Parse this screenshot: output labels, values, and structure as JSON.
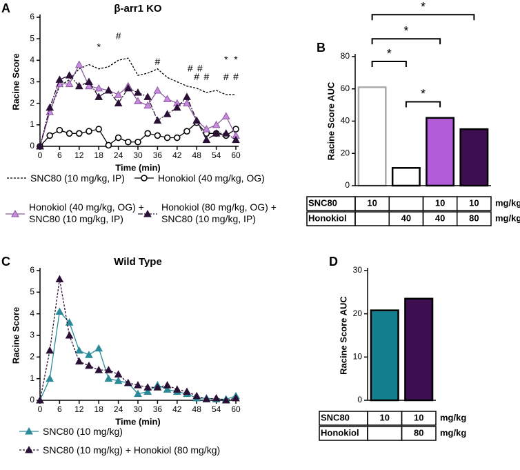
{
  "chart_data": [
    {
      "type": "line",
      "panel": "A",
      "title": "β-arr1 KO",
      "xlabel": "Time (min)",
      "ylabel": "Racine Score",
      "x": [
        0,
        3,
        6,
        9,
        12,
        15,
        18,
        21,
        24,
        27,
        30,
        33,
        36,
        39,
        42,
        45,
        48,
        51,
        54,
        57,
        60
      ],
      "xlim": [
        0,
        60
      ],
      "xticks": [
        0,
        6,
        12,
        18,
        24,
        30,
        36,
        42,
        48,
        54,
        60
      ],
      "ylim": [
        0,
        6
      ],
      "yticks": [
        0,
        1,
        2,
        3,
        4,
        5,
        6
      ],
      "series": [
        {
          "name": "SNC80 (10 mg/kg, IP)",
          "color": "#000000",
          "marker": "none",
          "dash": "dashed",
          "values": [
            0,
            1.6,
            2.8,
            3.1,
            3.6,
            3.8,
            3.6,
            3.7,
            4.0,
            4.1,
            3.3,
            3.4,
            3.6,
            3.2,
            3.0,
            2.8,
            2.7,
            2.5,
            2.6,
            2.4,
            2.4
          ]
        },
        {
          "name": "Honokiol (40 mg/kg, OG)",
          "color": "#000000",
          "marker": "circle",
          "marker_fill": "#ffffff",
          "dash": "solid",
          "values": [
            0,
            0.5,
            0.75,
            0.6,
            0.6,
            0.7,
            0.8,
            0.05,
            0.4,
            0.2,
            0.2,
            0.6,
            0.5,
            0.4,
            0.4,
            0.7,
            1.1,
            0.6,
            0.6,
            0.5,
            0.8
          ]
        },
        {
          "name": "Honokiol (40 mg/kg, OG) + SNC80 (10 mg/kg, IP)",
          "color": "#8a5a9e",
          "marker": "triangle",
          "marker_fill": "#c98be0",
          "dash": "solid",
          "values": [
            0,
            1.6,
            2.9,
            2.9,
            3.8,
            2.8,
            2.7,
            2.6,
            2.4,
            2.8,
            2.1,
            1.9,
            2.6,
            2.2,
            2.0,
            2.0,
            1.2,
            0.8,
            1.0,
            1.4,
            0.5
          ]
        },
        {
          "name": "Honokiol (80 mg/kg, OG) + SNC80 (10 mg/kg, IP)",
          "color": "#2a1035",
          "marker": "triangle",
          "marker_fill": "#2a1035",
          "dash": "dashdot",
          "values": [
            0,
            1.8,
            3.1,
            3.3,
            2.8,
            3.0,
            2.3,
            2.6,
            2.0,
            2.7,
            2.5,
            2.3,
            1.2,
            1.5,
            1.8,
            2.3,
            1.2,
            0.3,
            0.6,
            0.6,
            0.3
          ]
        }
      ],
      "annotations": [
        {
          "text": "*",
          "x": 18,
          "y": 4.6
        },
        {
          "text": "#",
          "x": 24,
          "y": 5.1
        },
        {
          "text": "#",
          "x": 36,
          "y": 3.9
        },
        {
          "text": "#",
          "x": 46,
          "y": 3.6
        },
        {
          "text": "#",
          "x": 49,
          "y": 3.6
        },
        {
          "text": "#",
          "x": 48,
          "y": 3.2
        },
        {
          "text": "#",
          "x": 51,
          "y": 3.2
        },
        {
          "text": "#",
          "x": 57,
          "y": 3.2
        },
        {
          "text": "#",
          "x": 60,
          "y": 3.2
        },
        {
          "text": "*",
          "x": 57,
          "y": 4.0
        },
        {
          "text": "*",
          "x": 60,
          "y": 4.0
        }
      ]
    },
    {
      "type": "bar",
      "panel": "B",
      "ylabel": "Racine Score AUC",
      "values": [
        61,
        11,
        42,
        35
      ],
      "colors": [
        "#ffffff",
        "#ffffff",
        "#b35cd9",
        "#3d0e50"
      ],
      "edgecolors": [
        "#aaaaaa",
        "#000000",
        "#000000",
        "#000000"
      ],
      "ylim": [
        0,
        80
      ],
      "yticks": [
        0,
        20,
        40,
        60,
        80
      ],
      "significance": [
        {
          "text": "*",
          "between": [
            1,
            2
          ],
          "y": 52
        },
        {
          "text": "*",
          "between": [
            0,
            1
          ],
          "y": 77
        },
        {
          "text": "*",
          "between": [
            0,
            2
          ],
          "y": 91
        },
        {
          "text": "*",
          "between": [
            0,
            3
          ],
          "y": 106
        }
      ],
      "table": [
        {
          "label": "SNC80",
          "cells": [
            "10",
            null,
            "10",
            "10"
          ],
          "unit": "mg/kg"
        },
        {
          "label": "Honokiol",
          "cells": [
            null,
            "40",
            "40",
            "80"
          ],
          "unit": "mg/kg"
        }
      ]
    },
    {
      "type": "line",
      "panel": "C",
      "title": "Wild Type",
      "xlabel": "Time (min)",
      "ylabel": "Racine Score",
      "x": [
        0,
        3,
        6,
        9,
        12,
        15,
        18,
        21,
        24,
        27,
        30,
        33,
        36,
        39,
        42,
        45,
        48,
        51,
        54,
        57,
        60
      ],
      "xlim": [
        0,
        60
      ],
      "xticks": [
        0,
        6,
        12,
        18,
        24,
        30,
        36,
        42,
        48,
        54,
        60
      ],
      "ylim": [
        0,
        6
      ],
      "yticks": [
        0,
        1,
        2,
        3,
        4,
        5,
        6
      ],
      "series": [
        {
          "name": "SNC80 (10 mg/kg)",
          "color": "#2a8a99",
          "marker": "triangle",
          "marker_fill": "#2a8a99",
          "dash": "solid",
          "values": [
            0,
            1.0,
            4.1,
            3.6,
            2.3,
            2.1,
            2.4,
            1.0,
            0.9,
            0.8,
            0.3,
            0.4,
            0.7,
            0.5,
            0.4,
            0.3,
            0.1,
            0.1,
            0.05,
            0.05,
            0.2
          ]
        },
        {
          "name": "SNC80 (10 mg/kg) + Honokiol (80 mg/kg)",
          "color": "#2a1035",
          "marker": "triangle",
          "marker_fill": "#2a1035",
          "dash": "dashed",
          "values": [
            0,
            2.3,
            5.6,
            3.0,
            1.8,
            1.6,
            1.4,
            1.4,
            1.2,
            0.8,
            0.7,
            0.6,
            0.6,
            0.7,
            0.5,
            0.4,
            0.2,
            0.05,
            0.1,
            0.0,
            0.1
          ]
        }
      ],
      "annotations": []
    },
    {
      "type": "bar",
      "panel": "D",
      "ylabel": "Racine Score AUC",
      "values": [
        20.8,
        23.5
      ],
      "colors": [
        "#137f8f",
        "#3d0e50"
      ],
      "edgecolors": [
        "#000000",
        "#000000"
      ],
      "ylim": [
        0,
        30
      ],
      "yticks": [
        0,
        10,
        20,
        30
      ],
      "significance": [],
      "table": [
        {
          "label": "SNC80",
          "cells": [
            "10",
            "10"
          ],
          "unit": "mg/kg"
        },
        {
          "label": "Honokiol",
          "cells": [
            null,
            "80"
          ],
          "unit": "mg/kg"
        }
      ]
    }
  ]
}
